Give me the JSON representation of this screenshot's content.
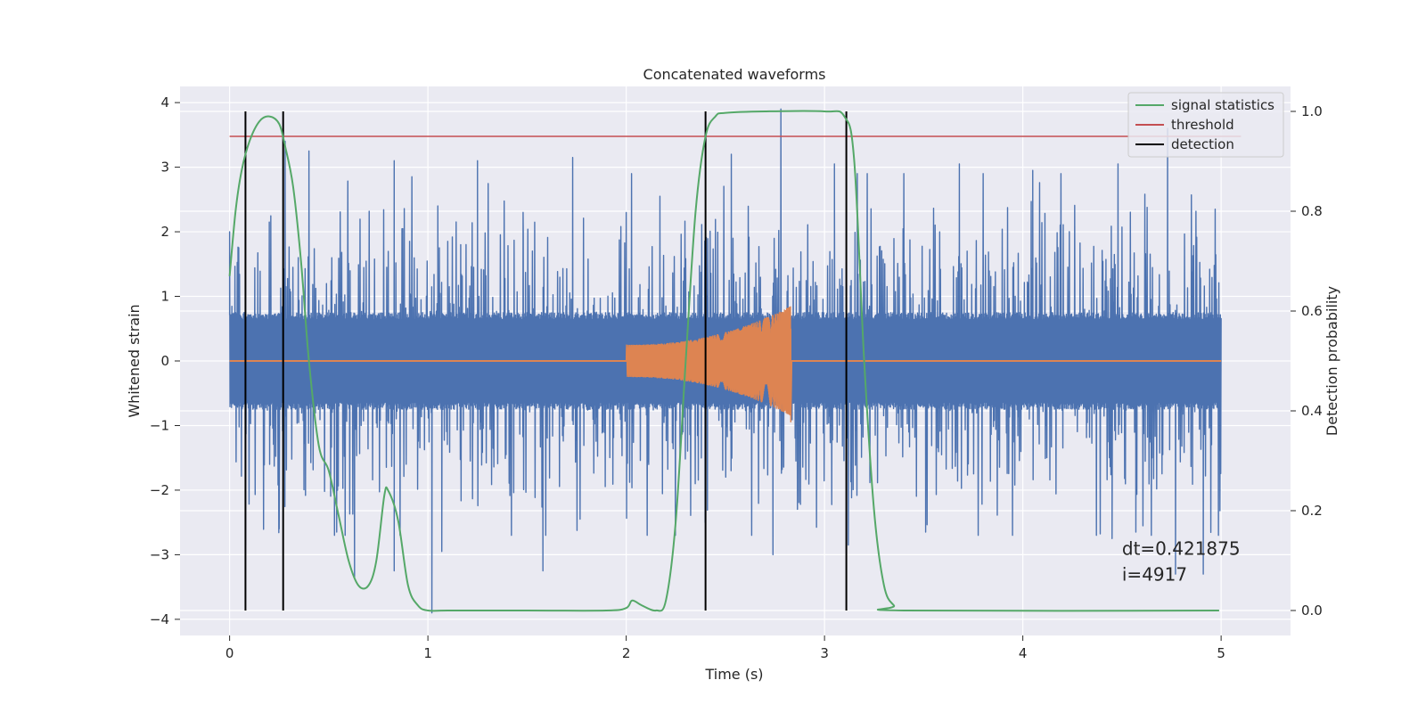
{
  "chart_data": {
    "type": "line",
    "title": "Concatenated waveforms",
    "xlabel": "Time (s)",
    "ylabel": "Whitened strain",
    "y2label": "Detection probability",
    "xlim": [
      -0.25,
      5.35
    ],
    "ylim": [
      -4.25,
      4.25
    ],
    "y2lim": [
      -0.05,
      1.05
    ],
    "xticks": [
      0,
      1,
      2,
      3,
      4,
      5
    ],
    "yticks": [
      -4,
      -3,
      -2,
      -1,
      0,
      1,
      2,
      3,
      4
    ],
    "y2ticks": [
      0.0,
      0.2,
      0.4,
      0.6,
      0.8,
      1.0
    ],
    "y2ticklabels": [
      "0.0",
      "0.2",
      "0.4",
      "0.6",
      "0.8",
      "1.0"
    ],
    "grid": true,
    "legend": {
      "placement": "top-right",
      "entries": [
        {
          "label": "signal statistics",
          "color": "#55a868"
        },
        {
          "label": "threshold",
          "color": "#c44e52"
        },
        {
          "label": "detection",
          "color": "#000000"
        }
      ]
    },
    "series": [
      {
        "role": "noise",
        "color": "#4c72b0",
        "x_range": [
          0,
          5
        ],
        "envelope_core": 0.75,
        "peak_spikes": [
          [
            0.0,
            2.0
          ],
          [
            0.2,
            2.15
          ],
          [
            0.28,
            3.4
          ],
          [
            0.4,
            3.25
          ],
          [
            0.83,
            3.1
          ],
          [
            1.05,
            2.4
          ],
          [
            1.25,
            3.1
          ],
          [
            1.48,
            2.3
          ],
          [
            1.73,
            3.15
          ],
          [
            2.17,
            2.55
          ],
          [
            2.53,
            3.2
          ],
          [
            2.78,
            3.9
          ],
          [
            3.05,
            3.05
          ],
          [
            3.68,
            3.05
          ],
          [
            4.05,
            2.95
          ],
          [
            4.48,
            3.05
          ],
          [
            4.73,
            3.6
          ],
          [
            4.97,
            2.35
          ]
        ],
        "trough_spikes": [
          [
            0.08,
            -2.85
          ],
          [
            0.25,
            -2.6
          ],
          [
            0.54,
            -2.65
          ],
          [
            0.63,
            -3.35
          ],
          [
            0.83,
            -3.25
          ],
          [
            1.02,
            -3.9
          ],
          [
            1.07,
            -2.95
          ],
          [
            1.58,
            -3.25
          ],
          [
            2.74,
            -3.0
          ],
          [
            3.12,
            -2.85
          ],
          [
            3.51,
            -2.65
          ],
          [
            4.45,
            -2.75
          ],
          [
            4.57,
            -2.65
          ],
          [
            4.77,
            -3.3
          ],
          [
            4.91,
            -3.3
          ]
        ]
      },
      {
        "role": "injected waveform",
        "color": "#dd8452",
        "chirp_start": 2.0,
        "chirp_end": 2.83,
        "amp_start": 0.25,
        "amp_end": 0.85
      },
      {
        "name": "signal statistics",
        "color": "#55a868",
        "x": [
          0,
          0.03,
          0.06,
          0.1,
          0.15,
          0.2,
          0.25,
          0.28,
          0.32,
          0.36,
          0.4,
          0.45,
          0.5,
          0.55,
          0.6,
          0.65,
          0.7,
          0.74,
          0.78,
          0.8,
          0.85,
          0.9,
          0.95,
          1.0,
          1.1,
          1.5,
          1.9,
          2.0,
          2.03,
          2.08,
          2.15,
          2.2,
          2.25,
          2.3,
          2.35,
          2.4,
          2.45,
          2.5,
          2.7,
          3.0,
          3.1,
          3.15,
          3.2,
          3.25,
          3.3,
          3.35,
          3.4,
          4.99
        ],
        "y": [
          0.67,
          0.8,
          0.88,
          0.94,
          0.98,
          0.99,
          0.975,
          0.93,
          0.85,
          0.7,
          0.5,
          0.33,
          0.28,
          0.19,
          0.1,
          0.05,
          0.05,
          0.1,
          0.23,
          0.24,
          0.18,
          0.05,
          0.01,
          0.0,
          0.0,
          0.0,
          0.0,
          0.005,
          0.02,
          0.01,
          0.0,
          0.02,
          0.18,
          0.5,
          0.8,
          0.95,
          0.99,
          0.997,
          1.0,
          1.0,
          0.99,
          0.9,
          0.5,
          0.2,
          0.05,
          0.01,
          0.0,
          0.0
        ]
      },
      {
        "name": "threshold",
        "color": "#c44e52",
        "x": [
          0,
          5.1
        ],
        "y": [
          0.95,
          0.95
        ]
      },
      {
        "name": "detection",
        "color": "#000000",
        "x": [
          0.08,
          0.27,
          2.4,
          3.11
        ],
        "y_range": [
          0,
          1
        ]
      }
    ],
    "annotations": [
      {
        "text": "dt=0.421875",
        "x": 4.5,
        "y": -3.0
      },
      {
        "text": " i=4917",
        "x": 4.5,
        "y": -3.4
      }
    ]
  }
}
